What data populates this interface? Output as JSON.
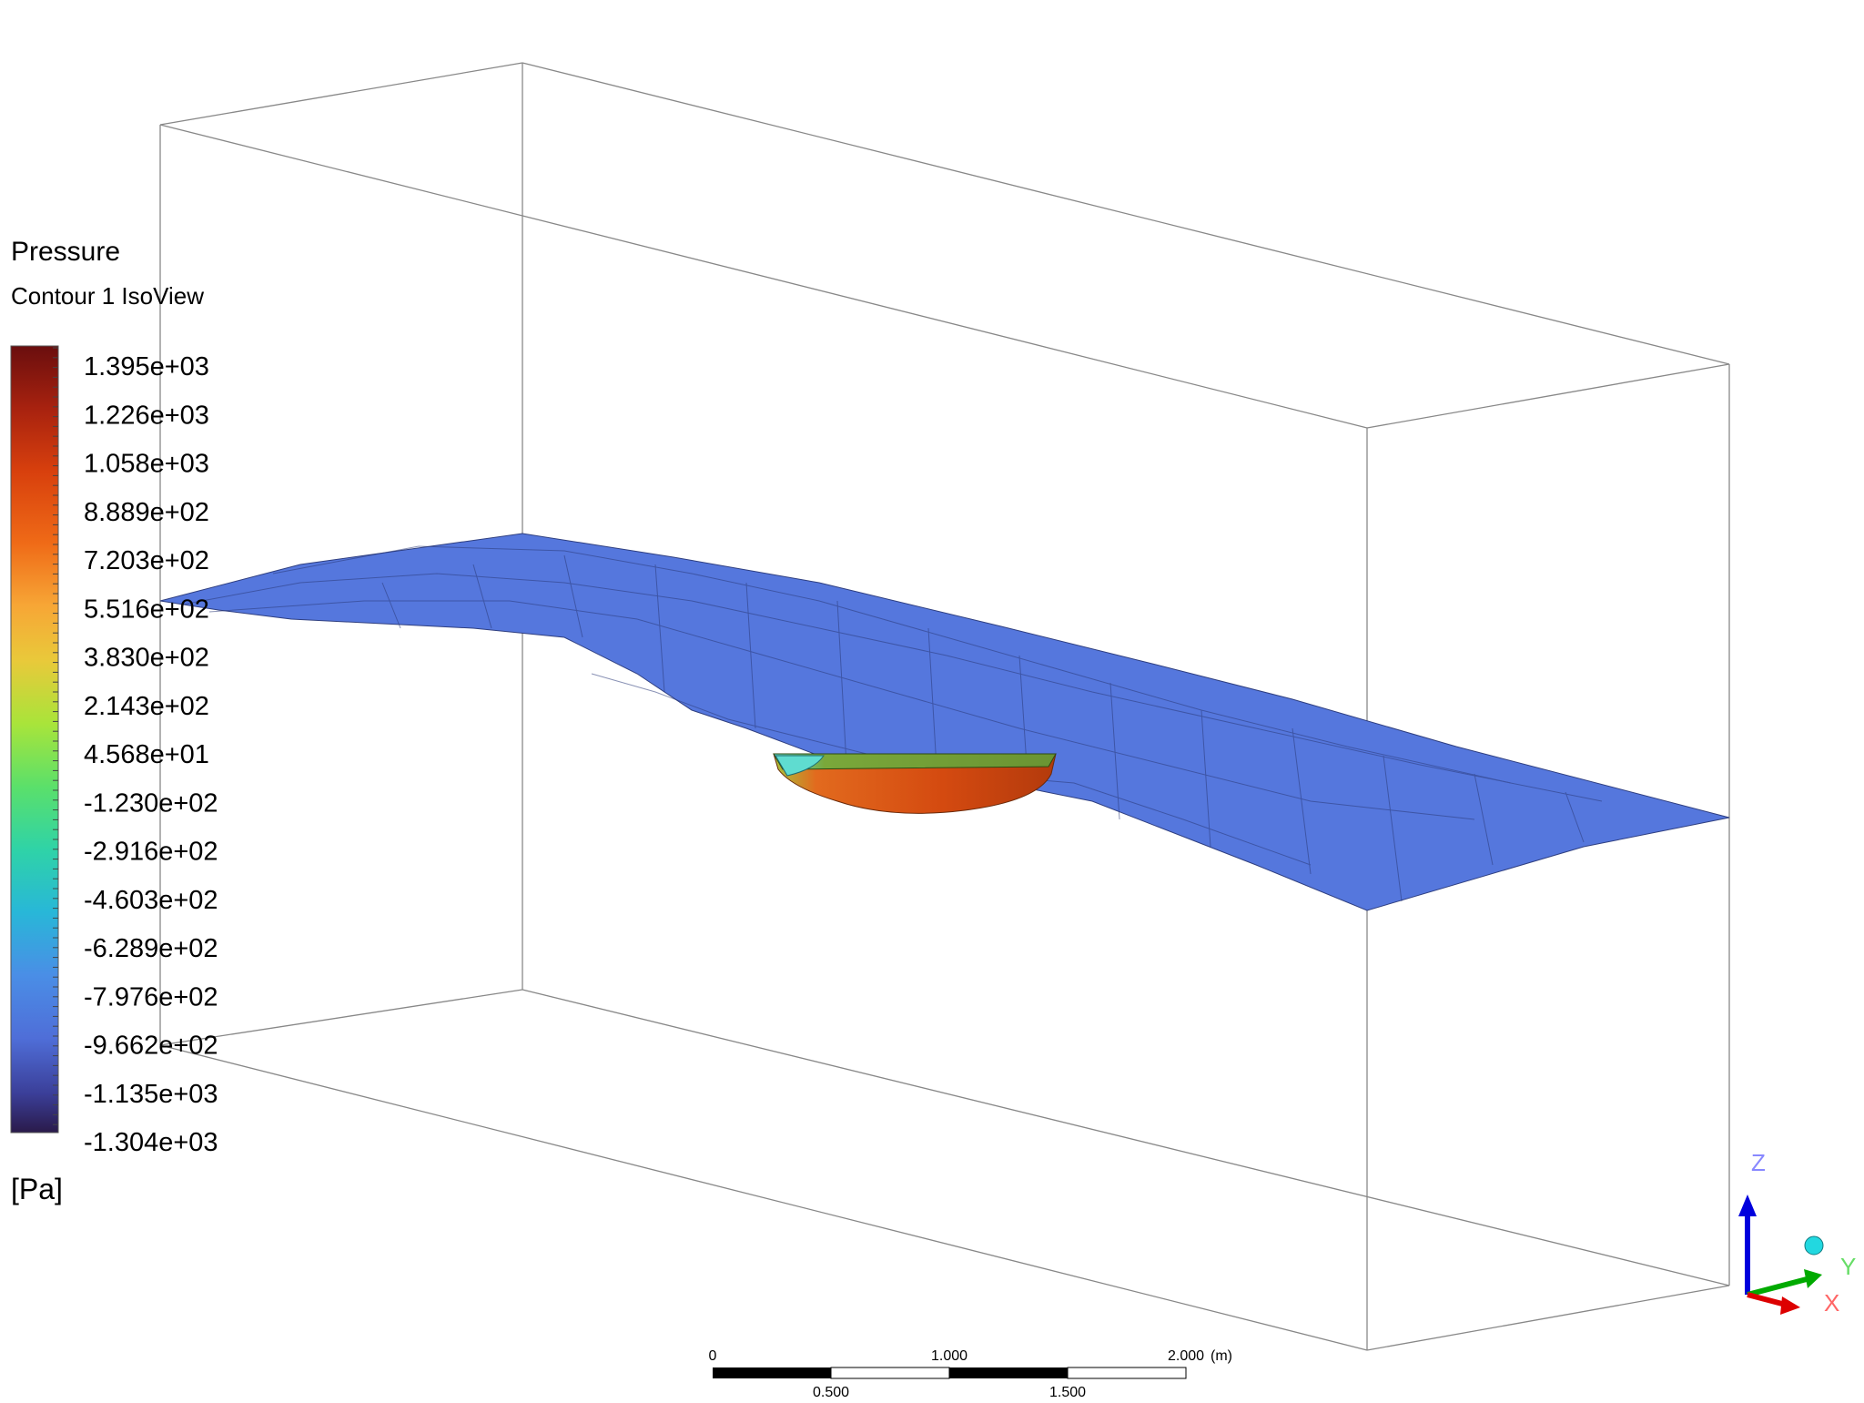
{
  "legend": {
    "title": "Pressure",
    "subtitle": "Contour 1 IsoView",
    "units": "[Pa]",
    "ticks": [
      "1.395e+03",
      "1.226e+03",
      "1.058e+03",
      "8.889e+02",
      "7.203e+02",
      "5.516e+02",
      "3.830e+02",
      "2.143e+02",
      "4.568e+01",
      "-1.230e+02",
      "-2.916e+02",
      "-4.603e+02",
      "-6.289e+02",
      "-7.976e+02",
      "-9.662e+02",
      "-1.135e+03",
      "-1.304e+03"
    ],
    "colormap": [
      "#6a0e0e",
      "#a8220f",
      "#d8400d",
      "#ef6a17",
      "#f7a636",
      "#e9c93a",
      "#a9e43a",
      "#5be06a",
      "#2fd3a7",
      "#28b7d8",
      "#4a8ee6",
      "#4f6ed8",
      "#3b3f99",
      "#2a1a4a"
    ]
  },
  "scale_bar": {
    "top_labels": [
      "0",
      "1.000",
      "2.000"
    ],
    "bottom_labels": [
      "0.500",
      "1.500"
    ],
    "unit": "(m)"
  },
  "axes_triad": {
    "x_label": "X",
    "y_label": "Y",
    "z_label": "Z",
    "x_color": "#ff6666",
    "y_color": "#66dd66",
    "z_color": "#8888ff"
  },
  "colors": {
    "water_surface": "#5577dd",
    "hull_top": "#6f9a33",
    "hull_side": "#d44a10",
    "box_lines": "#888888"
  }
}
